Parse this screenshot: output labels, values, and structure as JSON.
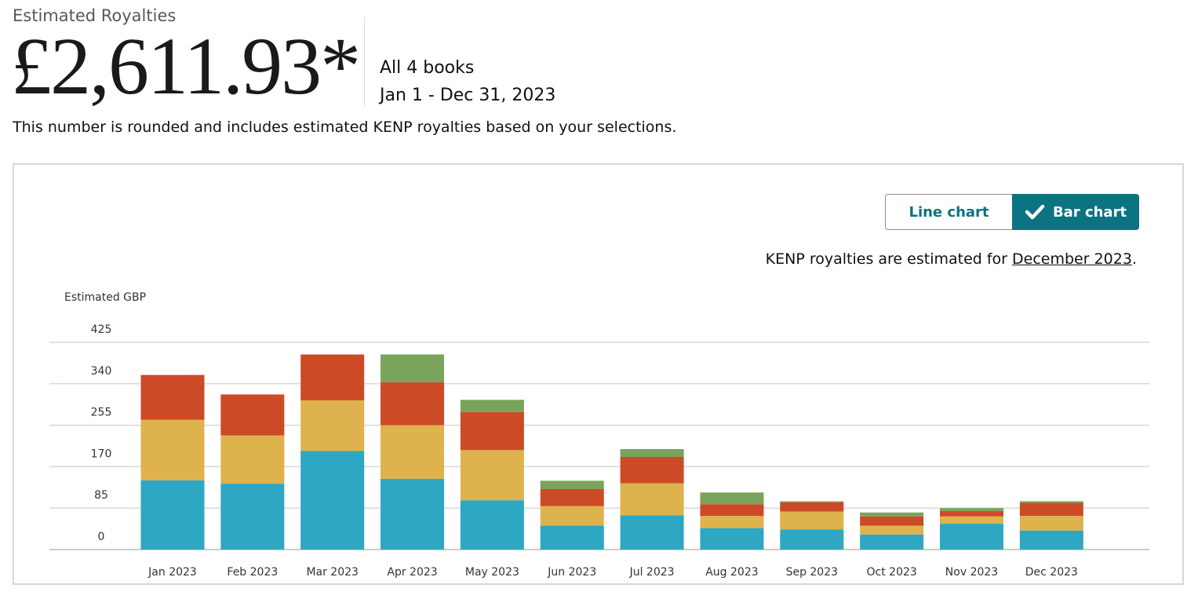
{
  "header": {
    "label": "Estimated Royalties",
    "amount": "£2,611.93*",
    "scope": "All 4 books",
    "date_range": "Jan 1 - Dec 31, 2023",
    "note": "This number is rounded and includes estimated KENP royalties based on your selections."
  },
  "toggle": {
    "line_label": "Line chart",
    "bar_label": "Bar chart",
    "selected": "Bar chart"
  },
  "kenp_note": {
    "prefix": "KENP royalties are estimated for ",
    "link": "December 2023",
    "suffix": "."
  },
  "colors": {
    "series": [
      "#2ea7c2",
      "#deb24c",
      "#cd4a27",
      "#7aa35b"
    ],
    "accent": "#0c7382",
    "grid": "#d5d9d9"
  },
  "chart_data": {
    "type": "bar",
    "stacked": true,
    "ylabel": "Estimated GBP",
    "xlabel": "",
    "ylim": [
      0,
      425
    ],
    "yticks": [
      0,
      85,
      170,
      255,
      340,
      425
    ],
    "grid": true,
    "legend": "none",
    "categories": [
      "Jan 2023",
      "Feb 2023",
      "Mar 2023",
      "Apr 2023",
      "May 2023",
      "Jun 2023",
      "Jul 2023",
      "Aug 2023",
      "Sep 2023",
      "Oct 2023",
      "Nov 2023",
      "Dec 2023"
    ],
    "series": [
      {
        "color": "#2ea7c2",
        "values": [
          142,
          135,
          202,
          145,
          101,
          49,
          70,
          44,
          41,
          31,
          53,
          39
        ]
      },
      {
        "color": "#deb24c",
        "values": [
          124,
          99,
          104,
          110,
          103,
          40,
          66,
          25,
          37,
          18,
          15,
          30
        ]
      },
      {
        "color": "#cd4a27",
        "values": [
          92,
          84,
          94,
          88,
          78,
          35,
          54,
          24,
          19,
          19,
          11,
          27
        ]
      },
      {
        "color": "#7aa35b",
        "values": [
          0,
          0,
          0,
          57,
          25,
          17,
          16,
          24,
          2,
          8,
          6,
          3
        ]
      }
    ]
  }
}
